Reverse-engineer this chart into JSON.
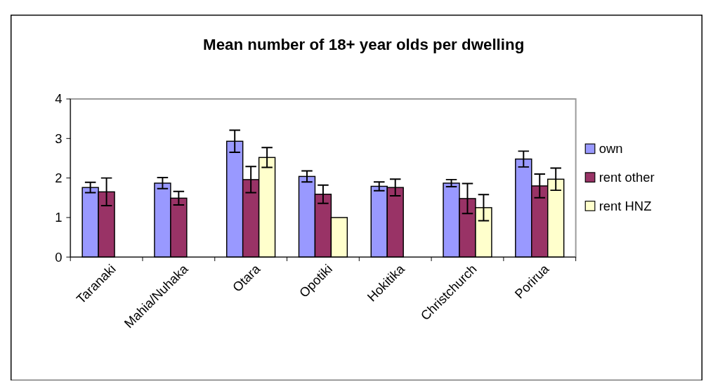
{
  "chart_data": {
    "type": "bar",
    "title": "Mean number of 18+ year olds per dwelling",
    "categories": [
      "Taranaki",
      "Mahia/Nuhaka",
      "Otara",
      "Opotiki",
      "Hokitika",
      "Christchurch",
      "Porirua"
    ],
    "series": [
      {
        "name": "own",
        "color": "#9999ff",
        "values": [
          1.76,
          1.87,
          2.93,
          2.04,
          1.79,
          1.87,
          2.48
        ],
        "errors": [
          0.13,
          0.14,
          0.28,
          0.14,
          0.11,
          0.09,
          0.2
        ]
      },
      {
        "name": "rent other",
        "color": "#993366",
        "values": [
          1.65,
          1.49,
          1.96,
          1.59,
          1.76,
          1.48,
          1.8
        ],
        "errors": [
          0.35,
          0.17,
          0.33,
          0.23,
          0.21,
          0.38,
          0.3
        ]
      },
      {
        "name": "rent HNZ",
        "color": "#ffffcc",
        "values": [
          null,
          null,
          2.52,
          1.0,
          null,
          1.25,
          1.97
        ],
        "errors": [
          null,
          null,
          0.25,
          null,
          null,
          0.33,
          0.28
        ]
      }
    ],
    "ylim": [
      0,
      4
    ],
    "yticks": [
      0,
      1,
      2,
      3,
      4
    ],
    "grid": false,
    "legend": "right"
  }
}
